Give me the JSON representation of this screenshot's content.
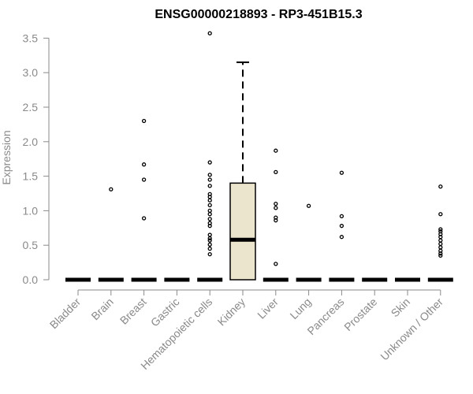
{
  "chart_data": {
    "type": "boxplot",
    "title": "ENSG00000218893 - RP3-451B15.3",
    "xlabel": "",
    "ylabel": "Expression",
    "ylim": [
      0,
      3.6
    ],
    "yticks": [
      "0.0",
      "0.5",
      "1.0",
      "1.5",
      "2.0",
      "2.5",
      "3.0",
      "3.5"
    ],
    "categories": [
      "Bladder",
      "Brain",
      "Breast",
      "Gastric",
      "Hematopoietic cells",
      "Kidney",
      "Liver",
      "Lung",
      "Pancreas",
      "Prostate",
      "Skin",
      "Unknown / Other"
    ],
    "box_fill": "#ece5cd",
    "boxes": [
      {
        "category": "Bladder",
        "min": 0,
        "q1": 0,
        "median": 0,
        "q3": 0,
        "max": 0,
        "outliers": []
      },
      {
        "category": "Brain",
        "min": 0,
        "q1": 0,
        "median": 0,
        "q3": 0,
        "max": 0,
        "outliers": [
          1.31
        ]
      },
      {
        "category": "Breast",
        "min": 0,
        "q1": 0,
        "median": 0,
        "q3": 0,
        "max": 0,
        "outliers": [
          0.89,
          1.45,
          1.67,
          2.3
        ]
      },
      {
        "category": "Gastric",
        "min": 0,
        "q1": 0,
        "median": 0,
        "q3": 0,
        "max": 0,
        "outliers": []
      },
      {
        "category": "Hematopoietic cells",
        "min": 0,
        "q1": 0,
        "median": 0,
        "q3": 0,
        "max": 0,
        "outliers": [
          0.37,
          0.45,
          0.51,
          0.57,
          0.6,
          0.65,
          0.78,
          0.82,
          0.88,
          0.95,
          1.0,
          1.08,
          1.15,
          1.2,
          1.24,
          1.36,
          1.45,
          1.52,
          1.7,
          3.57
        ]
      },
      {
        "category": "Kidney",
        "min": 0,
        "q1": 0,
        "median": 0.58,
        "q3": 1.4,
        "max": 3.15,
        "outliers": []
      },
      {
        "category": "Liver",
        "min": 0,
        "q1": 0,
        "median": 0,
        "q3": 0,
        "max": 0,
        "outliers": [
          0.23,
          0.86,
          0.9,
          1.04,
          1.1,
          1.56,
          1.87
        ]
      },
      {
        "category": "Lung",
        "min": 0,
        "q1": 0,
        "median": 0,
        "q3": 0,
        "max": 0,
        "outliers": [
          1.07
        ]
      },
      {
        "category": "Pancreas",
        "min": 0,
        "q1": 0,
        "median": 0,
        "q3": 0,
        "max": 0,
        "outliers": [
          0.62,
          0.78,
          0.92,
          1.55
        ]
      },
      {
        "category": "Prostate",
        "min": 0,
        "q1": 0,
        "median": 0,
        "q3": 0,
        "max": 0,
        "outliers": []
      },
      {
        "category": "Skin",
        "min": 0,
        "q1": 0,
        "median": 0,
        "q3": 0,
        "max": 0,
        "outliers": []
      },
      {
        "category": "Unknown / Other",
        "min": 0,
        "q1": 0,
        "median": 0,
        "q3": 0,
        "max": 0,
        "outliers": [
          0.35,
          0.38,
          0.42,
          0.47,
          0.52,
          0.57,
          0.62,
          0.66,
          0.7,
          0.73,
          0.95,
          1.35
        ]
      }
    ]
  }
}
